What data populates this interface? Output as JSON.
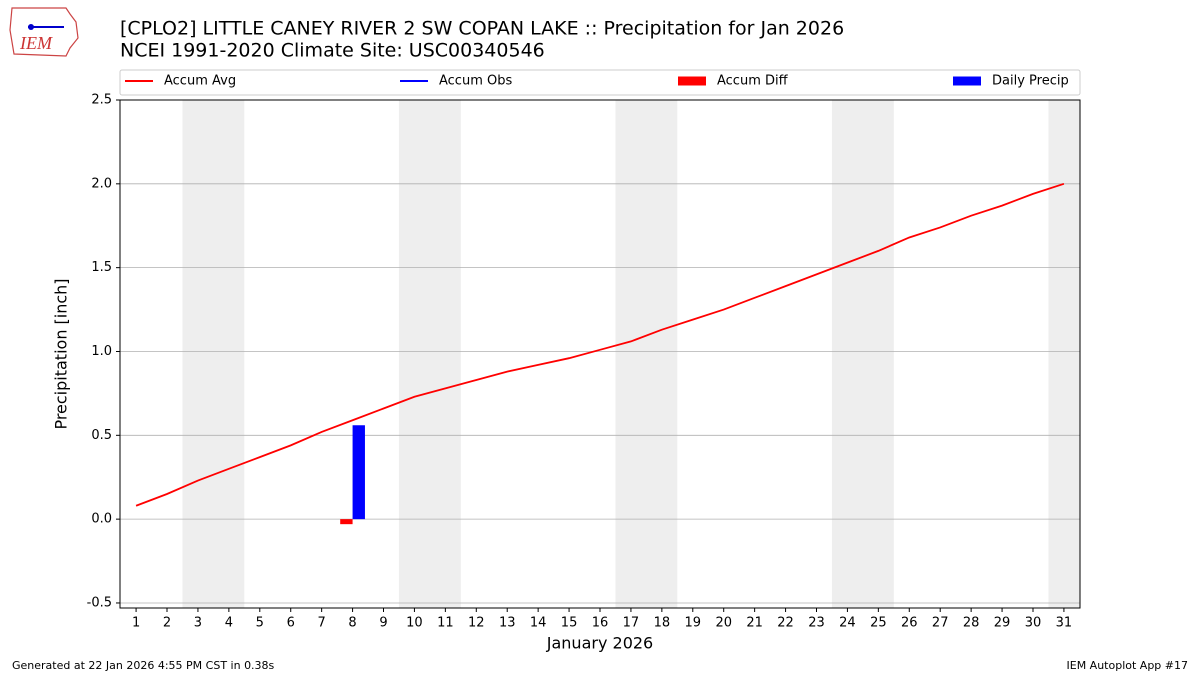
{
  "logo": {
    "text": "IEM"
  },
  "footer": {
    "left": "Generated at 22 Jan 2026 4:55 PM CST in 0.38s",
    "right": "IEM Autoplot App #17"
  },
  "chart_data": {
    "type": "line",
    "title": "[CPLO2] LITTLE CANEY RIVER 2 SW COPAN LAKE :: Precipitation for Jan 2026",
    "subtitle": "NCEI 1991-2020 Climate Site: USC00340546",
    "x_label": "January 2026",
    "y_label": "Precipitation [inch]",
    "x": [
      1,
      2,
      3,
      4,
      5,
      6,
      7,
      8,
      9,
      10,
      11,
      12,
      13,
      14,
      15,
      16,
      17,
      18,
      19,
      20,
      21,
      22,
      23,
      24,
      25,
      26,
      27,
      28,
      29,
      30,
      31
    ],
    "xlim": [
      0.48,
      31.52
    ],
    "xticks": [
      1,
      2,
      3,
      4,
      5,
      6,
      7,
      8,
      9,
      10,
      11,
      12,
      13,
      14,
      15,
      16,
      17,
      18,
      19,
      20,
      21,
      22,
      23,
      24,
      25,
      26,
      27,
      28,
      29,
      30,
      31
    ],
    "ylim": [
      -0.53,
      2.5
    ],
    "yticks": [
      -0.5,
      0.0,
      0.5,
      1.0,
      1.5,
      2.0,
      2.5
    ],
    "grid": true,
    "weekend_spans": [
      [
        2.5,
        4.5
      ],
      [
        9.5,
        11.5
      ],
      [
        16.5,
        18.5
      ],
      [
        23.5,
        25.5
      ],
      [
        30.5,
        31.52
      ]
    ],
    "series": [
      {
        "name": "Accum Avg",
        "type": "line",
        "color": "#ff0000",
        "values": [
          0.08,
          0.15,
          0.23,
          0.3,
          0.37,
          0.44,
          0.52,
          0.59,
          0.66,
          0.73,
          0.78,
          0.83,
          0.88,
          0.92,
          0.96,
          1.01,
          1.06,
          1.13,
          1.19,
          1.25,
          1.32,
          1.39,
          1.46,
          1.53,
          1.6,
          1.68,
          1.74,
          1.81,
          1.87,
          1.94,
          2.0
        ]
      },
      {
        "name": "Accum Obs",
        "type": "line",
        "color": "#0000ff",
        "values": [
          null,
          null,
          null,
          null,
          null,
          null,
          null,
          null,
          null,
          null,
          null,
          null,
          null,
          null,
          null,
          null,
          null,
          null,
          null,
          null,
          null,
          null,
          null,
          null,
          null,
          null,
          null,
          null,
          null,
          null,
          null
        ]
      },
      {
        "name": "Accum Diff",
        "type": "bar",
        "color": "#ff0000",
        "values": [
          null,
          null,
          null,
          null,
          null,
          null,
          null,
          -0.03,
          null,
          null,
          null,
          null,
          null,
          null,
          null,
          null,
          null,
          null,
          null,
          null,
          null,
          null,
          null,
          null,
          null,
          null,
          null,
          null,
          null,
          null,
          null
        ]
      },
      {
        "name": "Daily Precip",
        "type": "bar",
        "color": "#0000ff",
        "values": [
          null,
          null,
          null,
          null,
          null,
          null,
          null,
          0.56,
          null,
          null,
          null,
          null,
          null,
          null,
          null,
          null,
          null,
          null,
          null,
          null,
          null,
          null,
          null,
          null,
          null,
          null,
          null,
          null,
          null,
          null,
          null
        ]
      }
    ]
  }
}
